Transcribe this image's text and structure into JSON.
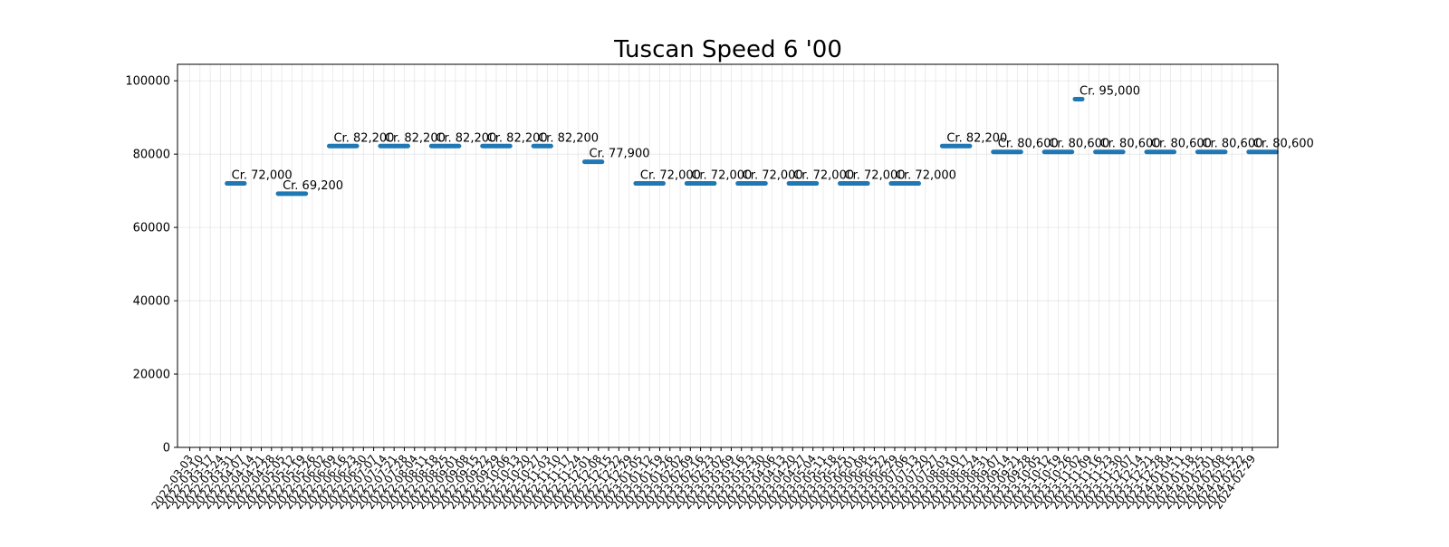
{
  "chart_data": {
    "type": "line",
    "title": "Tuscan Speed 6 '00",
    "xlabel": "",
    "ylabel": "",
    "ylim": [
      0,
      104500
    ],
    "y_ticks": [
      0,
      20000,
      40000,
      60000,
      80000,
      100000
    ],
    "grid": true,
    "legend": "none",
    "color": "#1f77b4",
    "x_dates": [
      "2022-03-03",
      "2022-03-10",
      "2022-03-17",
      "2022-03-24",
      "2022-03-31",
      "2022-04-07",
      "2022-04-14",
      "2022-04-21",
      "2022-04-28",
      "2022-05-05",
      "2022-05-12",
      "2022-05-19",
      "2022-05-26",
      "2022-06-02",
      "2022-06-09",
      "2022-06-16",
      "2022-06-23",
      "2022-06-30",
      "2022-07-07",
      "2022-07-14",
      "2022-07-21",
      "2022-07-28",
      "2022-08-04",
      "2022-08-11",
      "2022-08-18",
      "2022-08-25",
      "2022-09-01",
      "2022-09-08",
      "2022-09-15",
      "2022-09-22",
      "2022-09-29",
      "2022-10-06",
      "2022-10-13",
      "2022-10-20",
      "2022-10-27",
      "2022-11-03",
      "2022-11-10",
      "2022-11-17",
      "2022-11-24",
      "2022-12-01",
      "2022-12-08",
      "2022-12-15",
      "2022-12-22",
      "2022-12-29",
      "2023-01-05",
      "2023-01-12",
      "2023-01-19",
      "2023-01-26",
      "2023-02-02",
      "2023-02-09",
      "2023-02-16",
      "2023-02-23",
      "2023-03-02",
      "2023-03-09",
      "2023-03-16",
      "2023-03-23",
      "2023-03-30",
      "2023-04-06",
      "2023-04-13",
      "2023-04-20",
      "2023-04-27",
      "2023-05-04",
      "2023-05-11",
      "2023-05-18",
      "2023-05-25",
      "2023-06-01",
      "2023-06-08",
      "2023-06-15",
      "2023-06-22",
      "2023-06-29",
      "2023-07-06",
      "2023-07-13",
      "2023-07-20",
      "2023-07-27",
      "2023-08-03",
      "2023-08-10",
      "2023-08-17",
      "2023-08-24",
      "2023-08-31",
      "2023-09-07",
      "2023-09-14",
      "2023-09-21",
      "2023-09-28",
      "2023-10-05",
      "2023-10-12",
      "2023-10-19",
      "2023-10-26",
      "2023-11-02",
      "2023-11-09",
      "2023-11-16",
      "2023-11-23",
      "2023-11-30",
      "2023-12-07",
      "2023-12-14",
      "2023-12-21",
      "2023-12-28",
      "2024-01-04",
      "2024-01-11",
      "2024-01-18",
      "2024-01-25",
      "2024-02-01",
      "2024-02-08",
      "2024-02-15",
      "2024-02-22",
      "2024-02-29"
    ],
    "segments": [
      {
        "start": "2022-03-31",
        "end": "2022-04-07",
        "value": 72000,
        "label": "Cr. 72,000"
      },
      {
        "start": "2022-05-05",
        "end": "2022-05-19",
        "value": 69200,
        "label": "Cr. 69,200"
      },
      {
        "start": "2022-06-09",
        "end": "2022-06-23",
        "value": 82200,
        "label": "Cr. 82,200"
      },
      {
        "start": "2022-07-14",
        "end": "2022-07-28",
        "value": 82200,
        "label": "Cr. 82,200"
      },
      {
        "start": "2022-08-18",
        "end": "2022-09-01",
        "value": 82200,
        "label": "Cr. 82,200"
      },
      {
        "start": "2022-09-22",
        "end": "2022-10-06",
        "value": 82200,
        "label": "Cr. 82,200"
      },
      {
        "start": "2022-10-27",
        "end": "2022-11-03",
        "value": 82200,
        "label": "Cr. 82,200"
      },
      {
        "start": "2022-12-01",
        "end": "2022-12-08",
        "value": 77900,
        "label": "Cr. 77,900"
      },
      {
        "start": "2023-01-05",
        "end": "2023-01-19",
        "value": 72000,
        "label": "Cr. 72,000"
      },
      {
        "start": "2023-02-09",
        "end": "2023-02-23",
        "value": 72000,
        "label": "Cr. 72,000"
      },
      {
        "start": "2023-03-16",
        "end": "2023-03-30",
        "value": 72000,
        "label": "Cr. 72,000"
      },
      {
        "start": "2023-04-20",
        "end": "2023-05-04",
        "value": 72000,
        "label": "Cr. 72,000"
      },
      {
        "start": "2023-05-25",
        "end": "2023-06-08",
        "value": 72000,
        "label": "Cr. 72,000"
      },
      {
        "start": "2023-06-29",
        "end": "2023-07-13",
        "value": 72000,
        "label": "Cr. 72,000"
      },
      {
        "start": "2023-08-03",
        "end": "2023-08-17",
        "value": 82200,
        "label": "Cr. 82,200"
      },
      {
        "start": "2023-09-07",
        "end": "2023-09-21",
        "value": 80600,
        "label": "Cr. 80,600"
      },
      {
        "start": "2023-10-12",
        "end": "2023-10-26",
        "value": 80600,
        "label": "Cr. 80,600"
      },
      {
        "start": "2023-11-02",
        "end": "2023-11-02",
        "value": 95000,
        "label": "Cr. 95,000"
      },
      {
        "start": "2023-11-16",
        "end": "2023-11-30",
        "value": 80600,
        "label": "Cr. 80,600"
      },
      {
        "start": "2023-12-21",
        "end": "2024-01-04",
        "value": 80600,
        "label": "Cr. 80,600"
      },
      {
        "start": "2024-01-25",
        "end": "2024-02-08",
        "value": 80600,
        "label": "Cr. 80,600"
      },
      {
        "start": "2024-02-29",
        "end": "2024-03-14",
        "value": 80600,
        "label": "Cr. 80,600"
      }
    ]
  }
}
